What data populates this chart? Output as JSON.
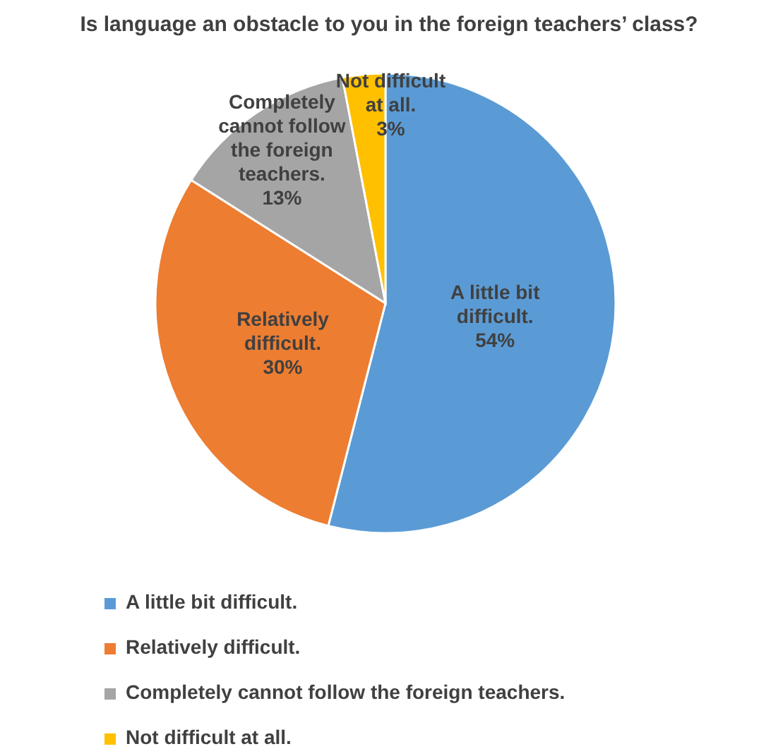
{
  "chart_data": {
    "type": "pie",
    "title": "Is language an obstacle to you in the foreign teachers’ class?",
    "categories": [
      "A little bit difficult.",
      "Relatively difficult.",
      "Completely cannot follow the foreign teachers.",
      "Not difficult at all."
    ],
    "values": [
      54,
      30,
      13,
      3
    ],
    "value_labels": [
      "54%",
      "30%",
      "13%",
      "3%"
    ],
    "colors": [
      "#5b9bd5",
      "#ed7d31",
      "#a5a5a5",
      "#ffc000"
    ],
    "legend": "bottom"
  }
}
